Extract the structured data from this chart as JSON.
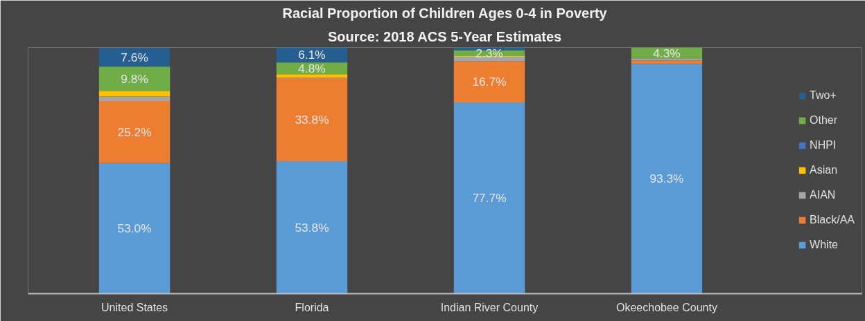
{
  "chart_data": {
    "type": "bar",
    "stacked": true,
    "title": "Racial Proportion of Children Ages 0-4 in Poverty",
    "subtitle": "Source: 2018 ACS 5-Year Estimates",
    "categories": [
      "United States",
      "Florida",
      "Indian River County",
      "Okeechobee County"
    ],
    "ylim": [
      0,
      100
    ],
    "tick_labels": "x",
    "grid": false,
    "legend": "right",
    "series": [
      {
        "name": "White",
        "color": "#5b9bd5",
        "values": [
          53.0,
          53.8,
          77.7,
          93.3
        ],
        "value_labels": [
          "53.0%",
          "53.8%",
          "77.7%",
          "93.3%"
        ]
      },
      {
        "name": "Black/AA",
        "color": "#ed7d31",
        "values": [
          25.2,
          33.8,
          16.7,
          1.4
        ],
        "value_labels": [
          "25.2%",
          "33.8%",
          "16.7%",
          null
        ]
      },
      {
        "name": "AIAN",
        "color": "#a5a5a5",
        "values": [
          1.9,
          0.2,
          1.8,
          0.9
        ],
        "value_labels": [
          null,
          null,
          null,
          null
        ]
      },
      {
        "name": "Asian",
        "color": "#ffc000",
        "values": [
          2.3,
          1.3,
          0.3,
          null
        ],
        "value_labels": [
          null,
          null,
          null,
          null
        ]
      },
      {
        "name": "NHPI",
        "color": "#4472c4",
        "values": [
          null,
          0.0,
          0.0,
          0.0
        ],
        "value_labels": [
          null,
          null,
          null,
          null
        ]
      },
      {
        "name": "Other",
        "color": "#70ad47",
        "values": [
          9.8,
          4.8,
          2.3,
          4.3
        ],
        "value_labels": [
          "9.8%",
          "4.8%",
          "2.3%",
          "4.3%"
        ]
      },
      {
        "name": "Two+",
        "color": "#255e91",
        "values": [
          7.6,
          6.1,
          1.2,
          0.0
        ],
        "value_labels": [
          "7.6%",
          "6.1%",
          null,
          null
        ]
      }
    ]
  }
}
